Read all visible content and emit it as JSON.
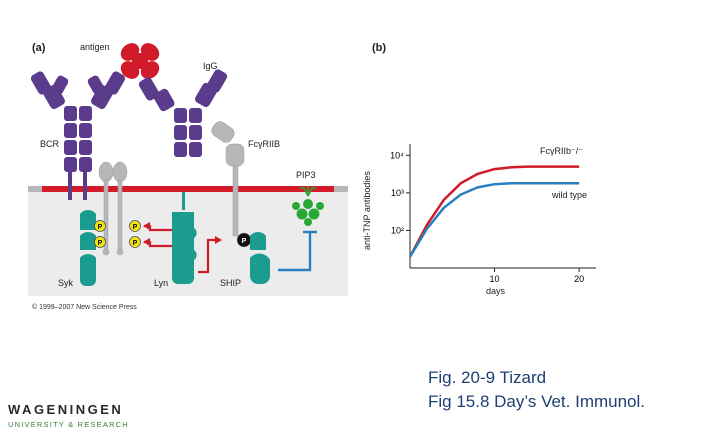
{
  "panel_a": {
    "label": "(a)",
    "antigen_label": "antigen",
    "igg_label": "IgG",
    "bcr_label": "BCR",
    "fcr_label": "FcγRIIB",
    "pip3_label": "PIP3",
    "syk_label": "Syk",
    "lyn_label": "Lyn",
    "ship_label": "SHIP",
    "phospho_label": "P",
    "copyright": "© 1999–2007 New Science Press"
  },
  "panel_b": {
    "label": "(b)",
    "y_axis_label": "anti-TNP antibodies",
    "x_axis_label": "days",
    "y_ticks": [
      "10⁴",
      "10³",
      "10²"
    ],
    "x_ticks": [
      "10",
      "20"
    ],
    "series_knockout_label": "FcγRIIb⁻/⁻",
    "series_wildtype_label": "wild type"
  },
  "chart_data": {
    "type": "line",
    "xlabel": "days",
    "ylabel": "anti-TNP antibodies",
    "y_scale": "log",
    "x_ticks": [
      10,
      20
    ],
    "y_ticks": [
      100,
      1000,
      10000
    ],
    "series": [
      {
        "name": "FcγRIIb⁻/⁻",
        "color": "#d11a2a",
        "x": [
          0,
          2,
          4,
          6,
          8,
          10,
          12,
          14,
          16,
          18,
          20
        ],
        "y": [
          20,
          140,
          650,
          1800,
          3200,
          4300,
          4800,
          5000,
          5000,
          5000,
          5000
        ]
      },
      {
        "name": "wild type",
        "color": "#2a7fc1",
        "x": [
          0,
          2,
          4,
          6,
          8,
          10,
          12,
          14,
          16,
          18,
          20
        ],
        "y": [
          20,
          110,
          400,
          900,
          1400,
          1700,
          1800,
          1800,
          1800,
          1800,
          1800
        ]
      }
    ]
  },
  "captions": {
    "line1": "Fig. 20-9 Tizard",
    "line2": "Fig 15.8 Day’s Vet. Immunol."
  },
  "logo": {
    "name": "WAGENINGEN",
    "sub": "UNIVERSITY & RESEARCH"
  },
  "colors": {
    "receptor_purple": "#5b3b8c",
    "receptor_gray": "#b7b7b7",
    "kinase_teal": "#1a9c8f",
    "membrane_red": "#d11a2a",
    "signal_red": "#d11a2a",
    "inhibit_blue": "#2a7fc1",
    "pip3_green": "#2aa836",
    "phospho_yellow": "#f2e21a",
    "cytoplasm_gray": "#ececec"
  }
}
